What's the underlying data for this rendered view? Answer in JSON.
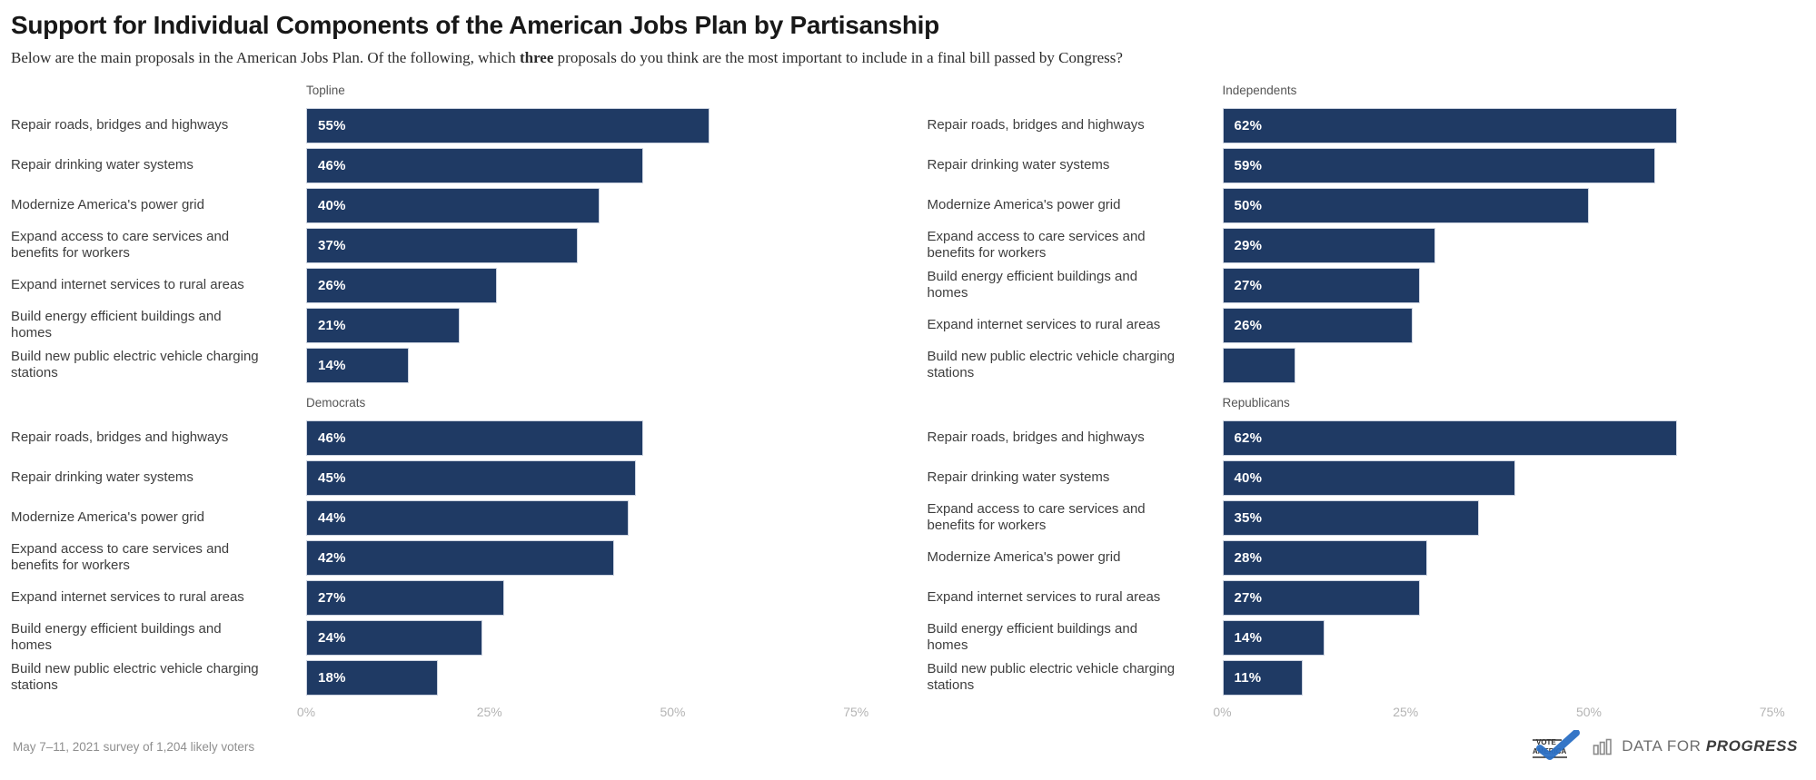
{
  "header": {
    "title": "Support for Individual Components of the American Jobs Plan by Partisanship",
    "subtitle_prefix": "Below are the main proposals in the American Jobs Plan. Of the following, which ",
    "subtitle_bold": "three",
    "subtitle_suffix": " proposals do you think are the most important to include in a final bill passed by Congress?"
  },
  "chart_data": {
    "type": "bar",
    "orientation": "horizontal",
    "unit": "percent",
    "bar_color": "#1f3a64",
    "value_label_color": "#ffffff",
    "axis": {
      "ticks": [
        "0%",
        "25%",
        "50%",
        "75%"
      ],
      "tick_values": [
        0,
        25,
        50,
        75
      ],
      "scale_max": 79,
      "grid": false,
      "shown_under": [
        "Democrats",
        "Republicans"
      ]
    },
    "panels": [
      {
        "title": "Topline",
        "rows": [
          {
            "label": "Repair roads, bridges and highways",
            "value": 55,
            "value_label": "55%"
          },
          {
            "label": "Repair drinking water systems",
            "value": 46,
            "value_label": "46%"
          },
          {
            "label": "Modernize America's power grid",
            "value": 40,
            "value_label": "40%"
          },
          {
            "label": "Expand access to care services and\nbenefits for workers",
            "value": 37,
            "value_label": "37%"
          },
          {
            "label": "Expand internet services to rural areas",
            "value": 26,
            "value_label": "26%"
          },
          {
            "label": "Build energy efficient buildings and\nhomes",
            "value": 21,
            "value_label": "21%"
          },
          {
            "label": "Build new public electric vehicle charging\nstations",
            "value": 14,
            "value_label": "14%"
          }
        ]
      },
      {
        "title": "Independents",
        "rows": [
          {
            "label": "Repair roads, bridges and highways",
            "value": 62,
            "value_label": "62%"
          },
          {
            "label": "Repair drinking water systems",
            "value": 59,
            "value_label": "59%"
          },
          {
            "label": "Modernize America's power grid",
            "value": 50,
            "value_label": "50%"
          },
          {
            "label": "Expand access to care services and\nbenefits for workers",
            "value": 29,
            "value_label": "29%"
          },
          {
            "label": "Build energy efficient buildings and\nhomes",
            "value": 27,
            "value_label": "27%"
          },
          {
            "label": "Expand internet services to rural areas",
            "value": 26,
            "value_label": "26%"
          },
          {
            "label": "Build new public electric vehicle charging\nstations",
            "value": 10,
            "value_label": ""
          }
        ]
      },
      {
        "title": "Democrats",
        "rows": [
          {
            "label": "Repair roads, bridges and highways",
            "value": 46,
            "value_label": "46%"
          },
          {
            "label": "Repair drinking water systems",
            "value": 45,
            "value_label": "45%"
          },
          {
            "label": "Modernize America's power grid",
            "value": 44,
            "value_label": "44%"
          },
          {
            "label": "Expand access to care services and\nbenefits for workers",
            "value": 42,
            "value_label": "42%"
          },
          {
            "label": "Expand internet services to rural areas",
            "value": 27,
            "value_label": "27%"
          },
          {
            "label": "Build energy efficient buildings and\nhomes",
            "value": 24,
            "value_label": "24%"
          },
          {
            "label": "Build new public electric vehicle charging\nstations",
            "value": 18,
            "value_label": "18%"
          }
        ]
      },
      {
        "title": "Republicans",
        "rows": [
          {
            "label": "Repair roads, bridges and highways",
            "value": 62,
            "value_label": "62%"
          },
          {
            "label": "Repair drinking water systems",
            "value": 40,
            "value_label": "40%"
          },
          {
            "label": "Expand access to care services and\nbenefits for workers",
            "value": 35,
            "value_label": "35%"
          },
          {
            "label": "Modernize America's power grid",
            "value": 28,
            "value_label": "28%"
          },
          {
            "label": "Expand internet services to rural areas",
            "value": 27,
            "value_label": "27%"
          },
          {
            "label": "Build energy efficient buildings and\nhomes",
            "value": 14,
            "value_label": "14%"
          },
          {
            "label": "Build new public electric vehicle charging\nstations",
            "value": 11,
            "value_label": "11%"
          }
        ]
      }
    ]
  },
  "footer": {
    "source_note": "May 7–11, 2021 survey of 1,204 likely voters",
    "vote_america_label": "VOTE AMERICA",
    "brand_prefix": "DATA FOR ",
    "brand_bold": "PROGRESS"
  },
  "colors": {
    "bar_navy": "#1f3a64",
    "title_text": "#181818",
    "label_text": "#3e3e3e",
    "panel_header_text": "#555555",
    "axis_tick_text": "#b4b4b4",
    "footer_text": "#8f8f8f",
    "logo_blue": "#2a6fc4"
  }
}
